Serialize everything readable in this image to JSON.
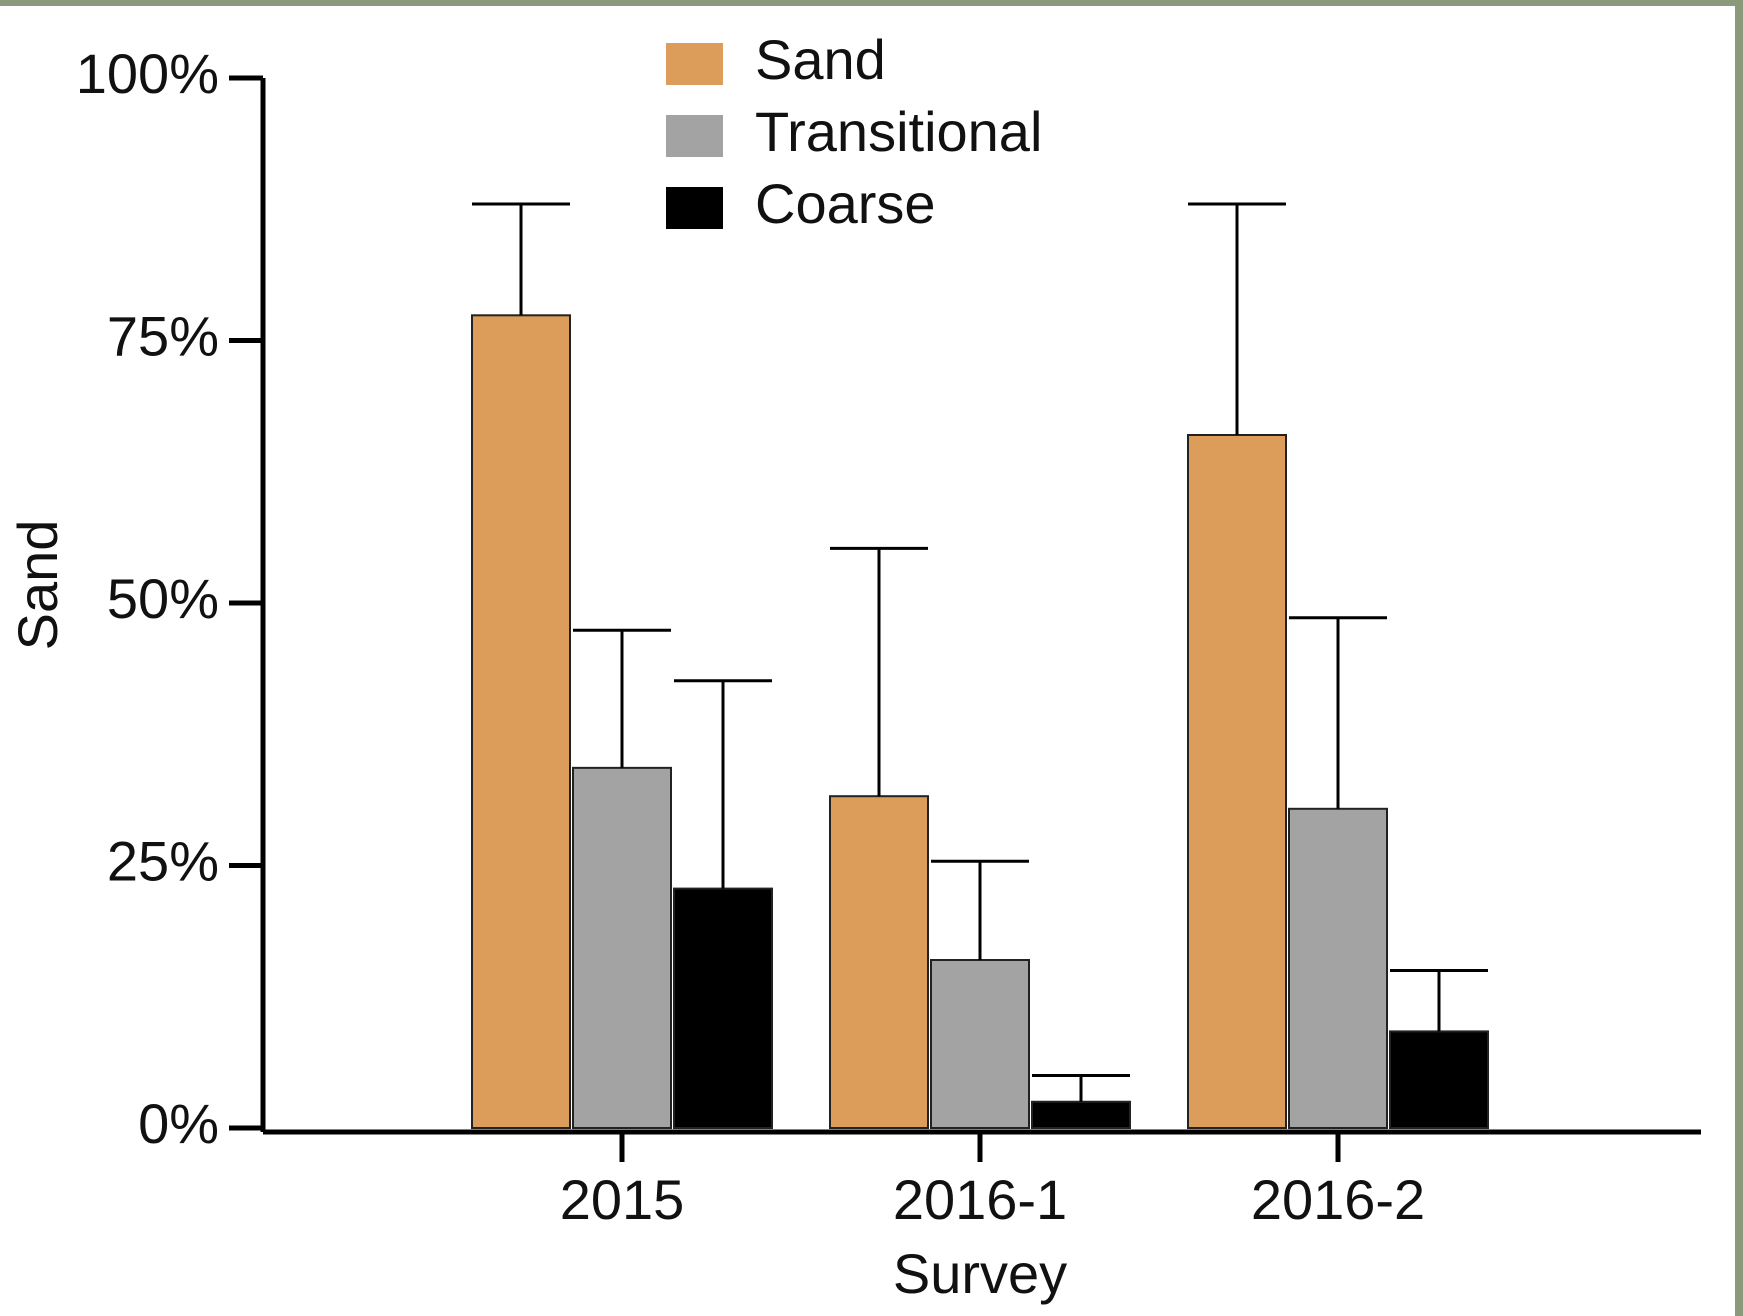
{
  "chart_data": {
    "type": "bar",
    "y_label": "Sand",
    "x_label": "Survey",
    "categories": [
      "2015",
      "2016-1",
      "2016-2"
    ],
    "series": [
      {
        "name": "Sand",
        "color": "#dc9c5a",
        "values": [
          77.4,
          31.6,
          66.0
        ],
        "errors": [
          10.6,
          23.6,
          22.0
        ]
      },
      {
        "name": "Transitional",
        "color": "#a3a3a3",
        "values": [
          34.3,
          16.0,
          30.4
        ],
        "errors": [
          13.1,
          9.4,
          18.2
        ]
      },
      {
        "name": "Coarse",
        "color": "#000000",
        "values": [
          22.8,
          2.5,
          9.2
        ],
        "errors": [
          19.8,
          2.5,
          5.8
        ]
      }
    ],
    "ylim": [
      0,
      100
    ],
    "yticks": [
      {
        "value": 0,
        "label": "0%"
      },
      {
        "value": 25,
        "label": "25%"
      },
      {
        "value": 50,
        "label": "50%"
      },
      {
        "value": 75,
        "label": "75%"
      },
      {
        "value": 100,
        "label": "100%"
      }
    ],
    "legend": "top"
  }
}
